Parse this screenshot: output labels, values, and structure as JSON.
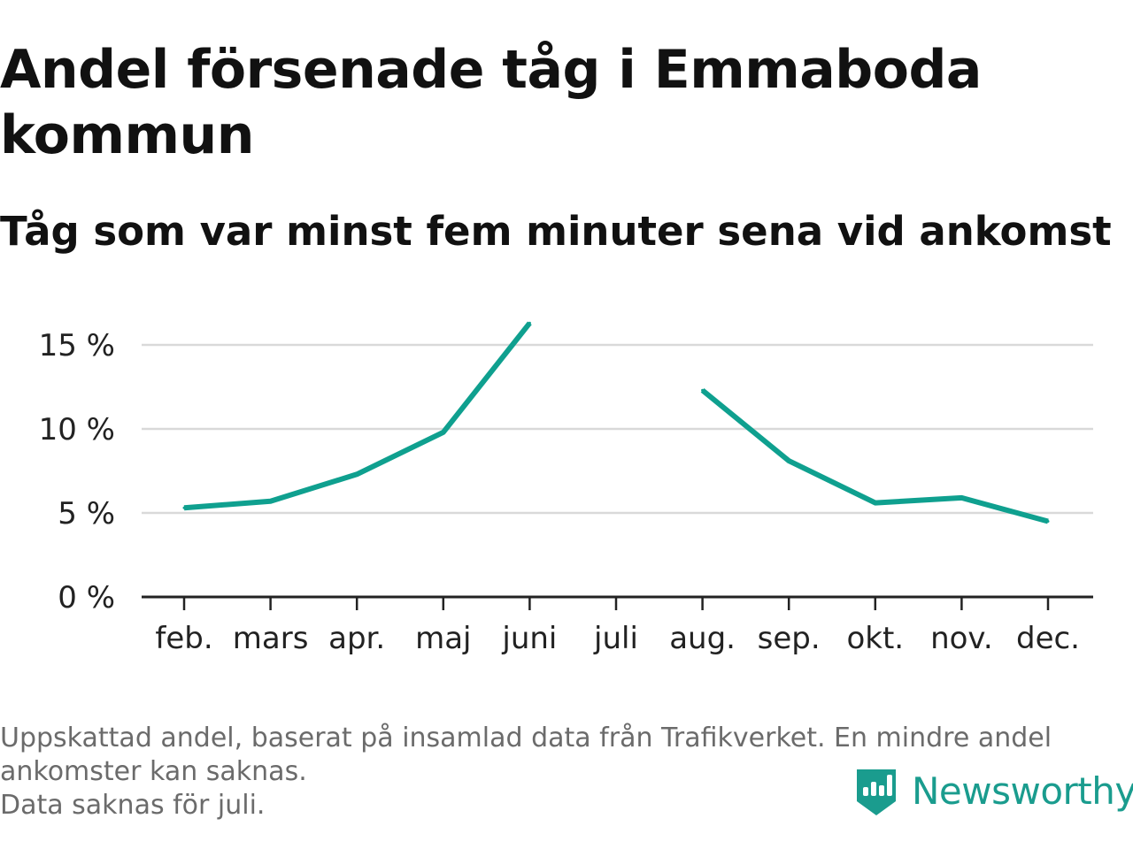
{
  "header": {
    "title": "Andel försenade tåg i Emmaboda kommun",
    "subtitle": "Tåg som var minst fem minuter sena vid ankomst"
  },
  "footnote": {
    "lines": [
      "Uppskattad andel, baserat på insamlad data från Trafikverket. En mindre andel",
      "ankomster kan saknas.",
      "Data saknas för juli."
    ]
  },
  "brand": {
    "name": "Newsworthy",
    "icon": "newsworthy-logo-icon"
  },
  "colors": {
    "line": "#0fa08f",
    "grid": "#d9d9d9",
    "axis": "#222222",
    "brand": "#1a9c8e"
  },
  "chart_data": {
    "type": "line",
    "title": "Andel försenade tåg i Emmaboda kommun",
    "subtitle": "Tåg som var minst fem minuter sena vid ankomst",
    "categories": [
      "feb.",
      "mars",
      "apr.",
      "maj",
      "juni",
      "juli",
      "aug.",
      "sep.",
      "okt.",
      "nov.",
      "dec."
    ],
    "series": [
      {
        "values": [
          5.3,
          5.7,
          7.3,
          9.8,
          16.3,
          null,
          12.3,
          8.1,
          5.6,
          5.9,
          4.5
        ]
      }
    ],
    "yticks": [
      0,
      5,
      10,
      15
    ],
    "ytick_labels": [
      "0 %",
      "5 %",
      "10 %",
      "15 %"
    ],
    "ylim": [
      0,
      16.5
    ],
    "grid": true,
    "legend": "none"
  }
}
